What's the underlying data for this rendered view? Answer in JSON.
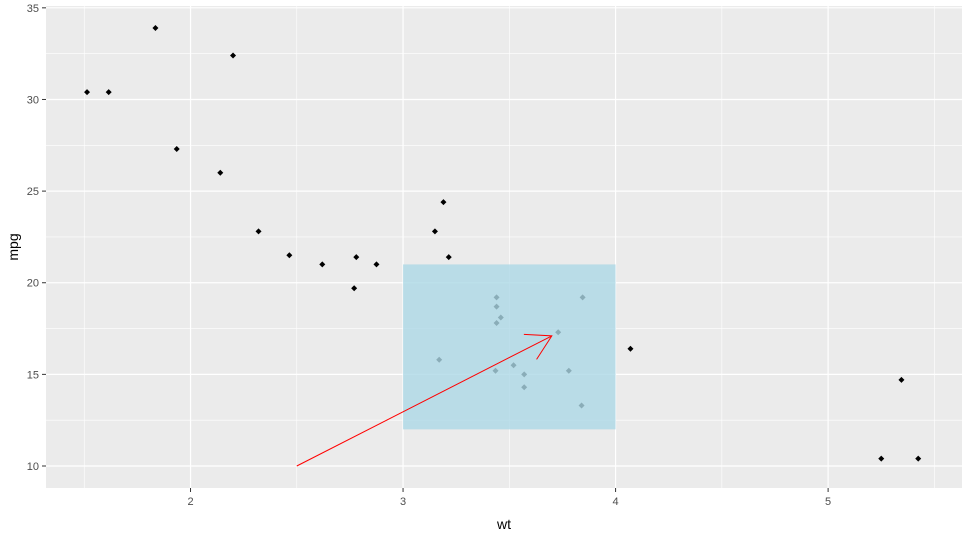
{
  "chart_data": {
    "type": "scatter",
    "title": "",
    "xlabel": "wt",
    "ylabel": "mpg",
    "xlim": [
      1.32,
      5.63
    ],
    "ylim": [
      8.8,
      35.1
    ],
    "x_ticks_major": [
      2,
      3,
      4,
      5
    ],
    "x_ticks_minor": [
      1.5,
      2.5,
      3.5,
      4.5,
      5.5
    ],
    "y_ticks_major": [
      10,
      15,
      20,
      25,
      30,
      35
    ],
    "y_ticks_minor": [
      12.5,
      17.5,
      22.5,
      27.5,
      32.5
    ],
    "x_tick_labels": [
      "2",
      "3",
      "4",
      "5"
    ],
    "y_tick_labels": [
      "10",
      "15",
      "20",
      "25",
      "30",
      "35"
    ],
    "grid": true,
    "points": {
      "x": [
        2.62,
        2.875,
        2.32,
        3.215,
        3.44,
        3.46,
        3.57,
        3.19,
        3.15,
        3.44,
        3.44,
        4.07,
        3.73,
        3.78,
        5.25,
        5.424,
        5.345,
        2.2,
        1.615,
        1.835,
        2.465,
        3.52,
        3.435,
        3.84,
        3.845,
        1.935,
        2.14,
        1.513,
        3.17,
        2.77,
        3.57,
        2.78
      ],
      "y": [
        21.0,
        21.0,
        22.8,
        21.4,
        18.7,
        18.1,
        14.3,
        24.4,
        22.8,
        19.2,
        17.8,
        16.4,
        17.3,
        15.2,
        10.4,
        10.4,
        14.7,
        32.4,
        30.4,
        33.9,
        21.5,
        15.5,
        15.2,
        13.3,
        19.2,
        27.3,
        26.0,
        30.4,
        15.8,
        19.7,
        15.0,
        21.4
      ],
      "color": "#000000"
    },
    "annotations": [
      {
        "type": "rect",
        "xmin": 3,
        "xmax": 4,
        "ymin": 12,
        "ymax": 21,
        "fill": "#add8e6",
        "alpha": 0.8
      },
      {
        "type": "segment",
        "x": 2.5,
        "y": 10,
        "xend": 3.7,
        "yend": 17.1,
        "color": "#ff0000",
        "arrow": "open"
      }
    ],
    "colors": {
      "panel": "#ebebeb",
      "grid": "#ffffff",
      "ticks": "#333333"
    }
  }
}
